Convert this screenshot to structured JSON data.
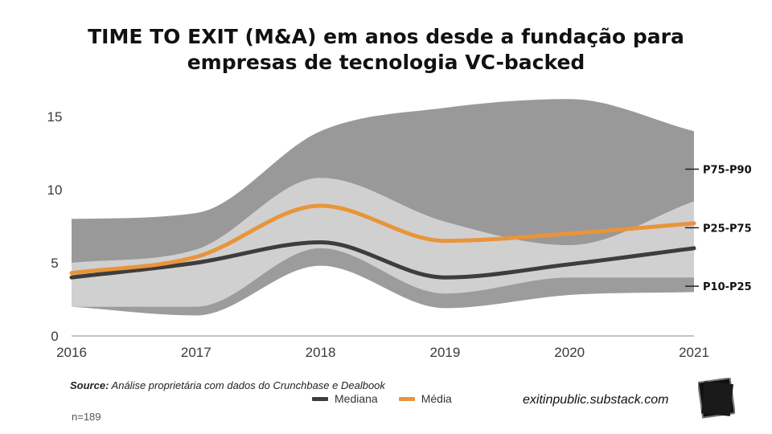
{
  "chart_data": {
    "type": "area",
    "title": "TIME TO EXIT (M&A) em anos desde a fundação para empresas de tecnologia VC-backed",
    "title_lines": [
      "TIME TO EXIT (M&A) em anos desde a fundação para",
      "empresas de tecnologia VC-backed"
    ],
    "x": [
      2016,
      2017,
      2018,
      2019,
      2020,
      2021
    ],
    "xlabels": [
      "2016",
      "2017",
      "2018",
      "2019",
      "2020",
      "2021"
    ],
    "ylim": [
      0,
      15
    ],
    "yticks": [
      0,
      5,
      10,
      15
    ],
    "ytick_labels": [
      "0",
      "5",
      "10",
      "15"
    ],
    "bands": [
      {
        "name": "P75-P90",
        "label": "P75-P90",
        "lower": [
          5.0,
          5.9,
          10.8,
          7.8,
          6.2,
          9.2
        ],
        "upper": [
          8.0,
          8.4,
          14.0,
          15.6,
          16.2,
          14.0
        ],
        "color": "#999999"
      },
      {
        "name": "P25-P75",
        "label": "P25-P75",
        "lower": [
          2.0,
          2.0,
          6.0,
          2.9,
          4.0,
          4.0
        ],
        "upper": [
          5.0,
          5.9,
          10.8,
          7.8,
          6.2,
          9.2
        ],
        "color": "#d0d0d0"
      },
      {
        "name": "P10-P25",
        "label": "P10-P25",
        "lower": [
          2.0,
          1.4,
          4.8,
          1.9,
          2.8,
          3.0
        ],
        "upper": [
          2.0,
          2.0,
          6.0,
          2.9,
          4.0,
          4.0
        ],
        "color": "#9c9c9c"
      }
    ],
    "series": [
      {
        "name": "Mediana",
        "values": [
          4.0,
          5.0,
          6.4,
          4.0,
          4.9,
          6.0
        ],
        "color": "#3d3d3d"
      },
      {
        "name": "Média",
        "values": [
          4.3,
          5.4,
          8.9,
          6.5,
          7.0,
          7.7
        ],
        "color": "#e8953a"
      }
    ],
    "label_values": {
      "P75-P90": 11.4,
      "P25-P75": 7.4,
      "P10-P25": 3.4
    },
    "legend_position": "bottom-center"
  },
  "footer": {
    "source_label": "Source:",
    "source_text": "Análise proprietária com dados do Crunchbase e Dealbook",
    "n": "n=189",
    "site": "exitinpublic.substack.com"
  }
}
